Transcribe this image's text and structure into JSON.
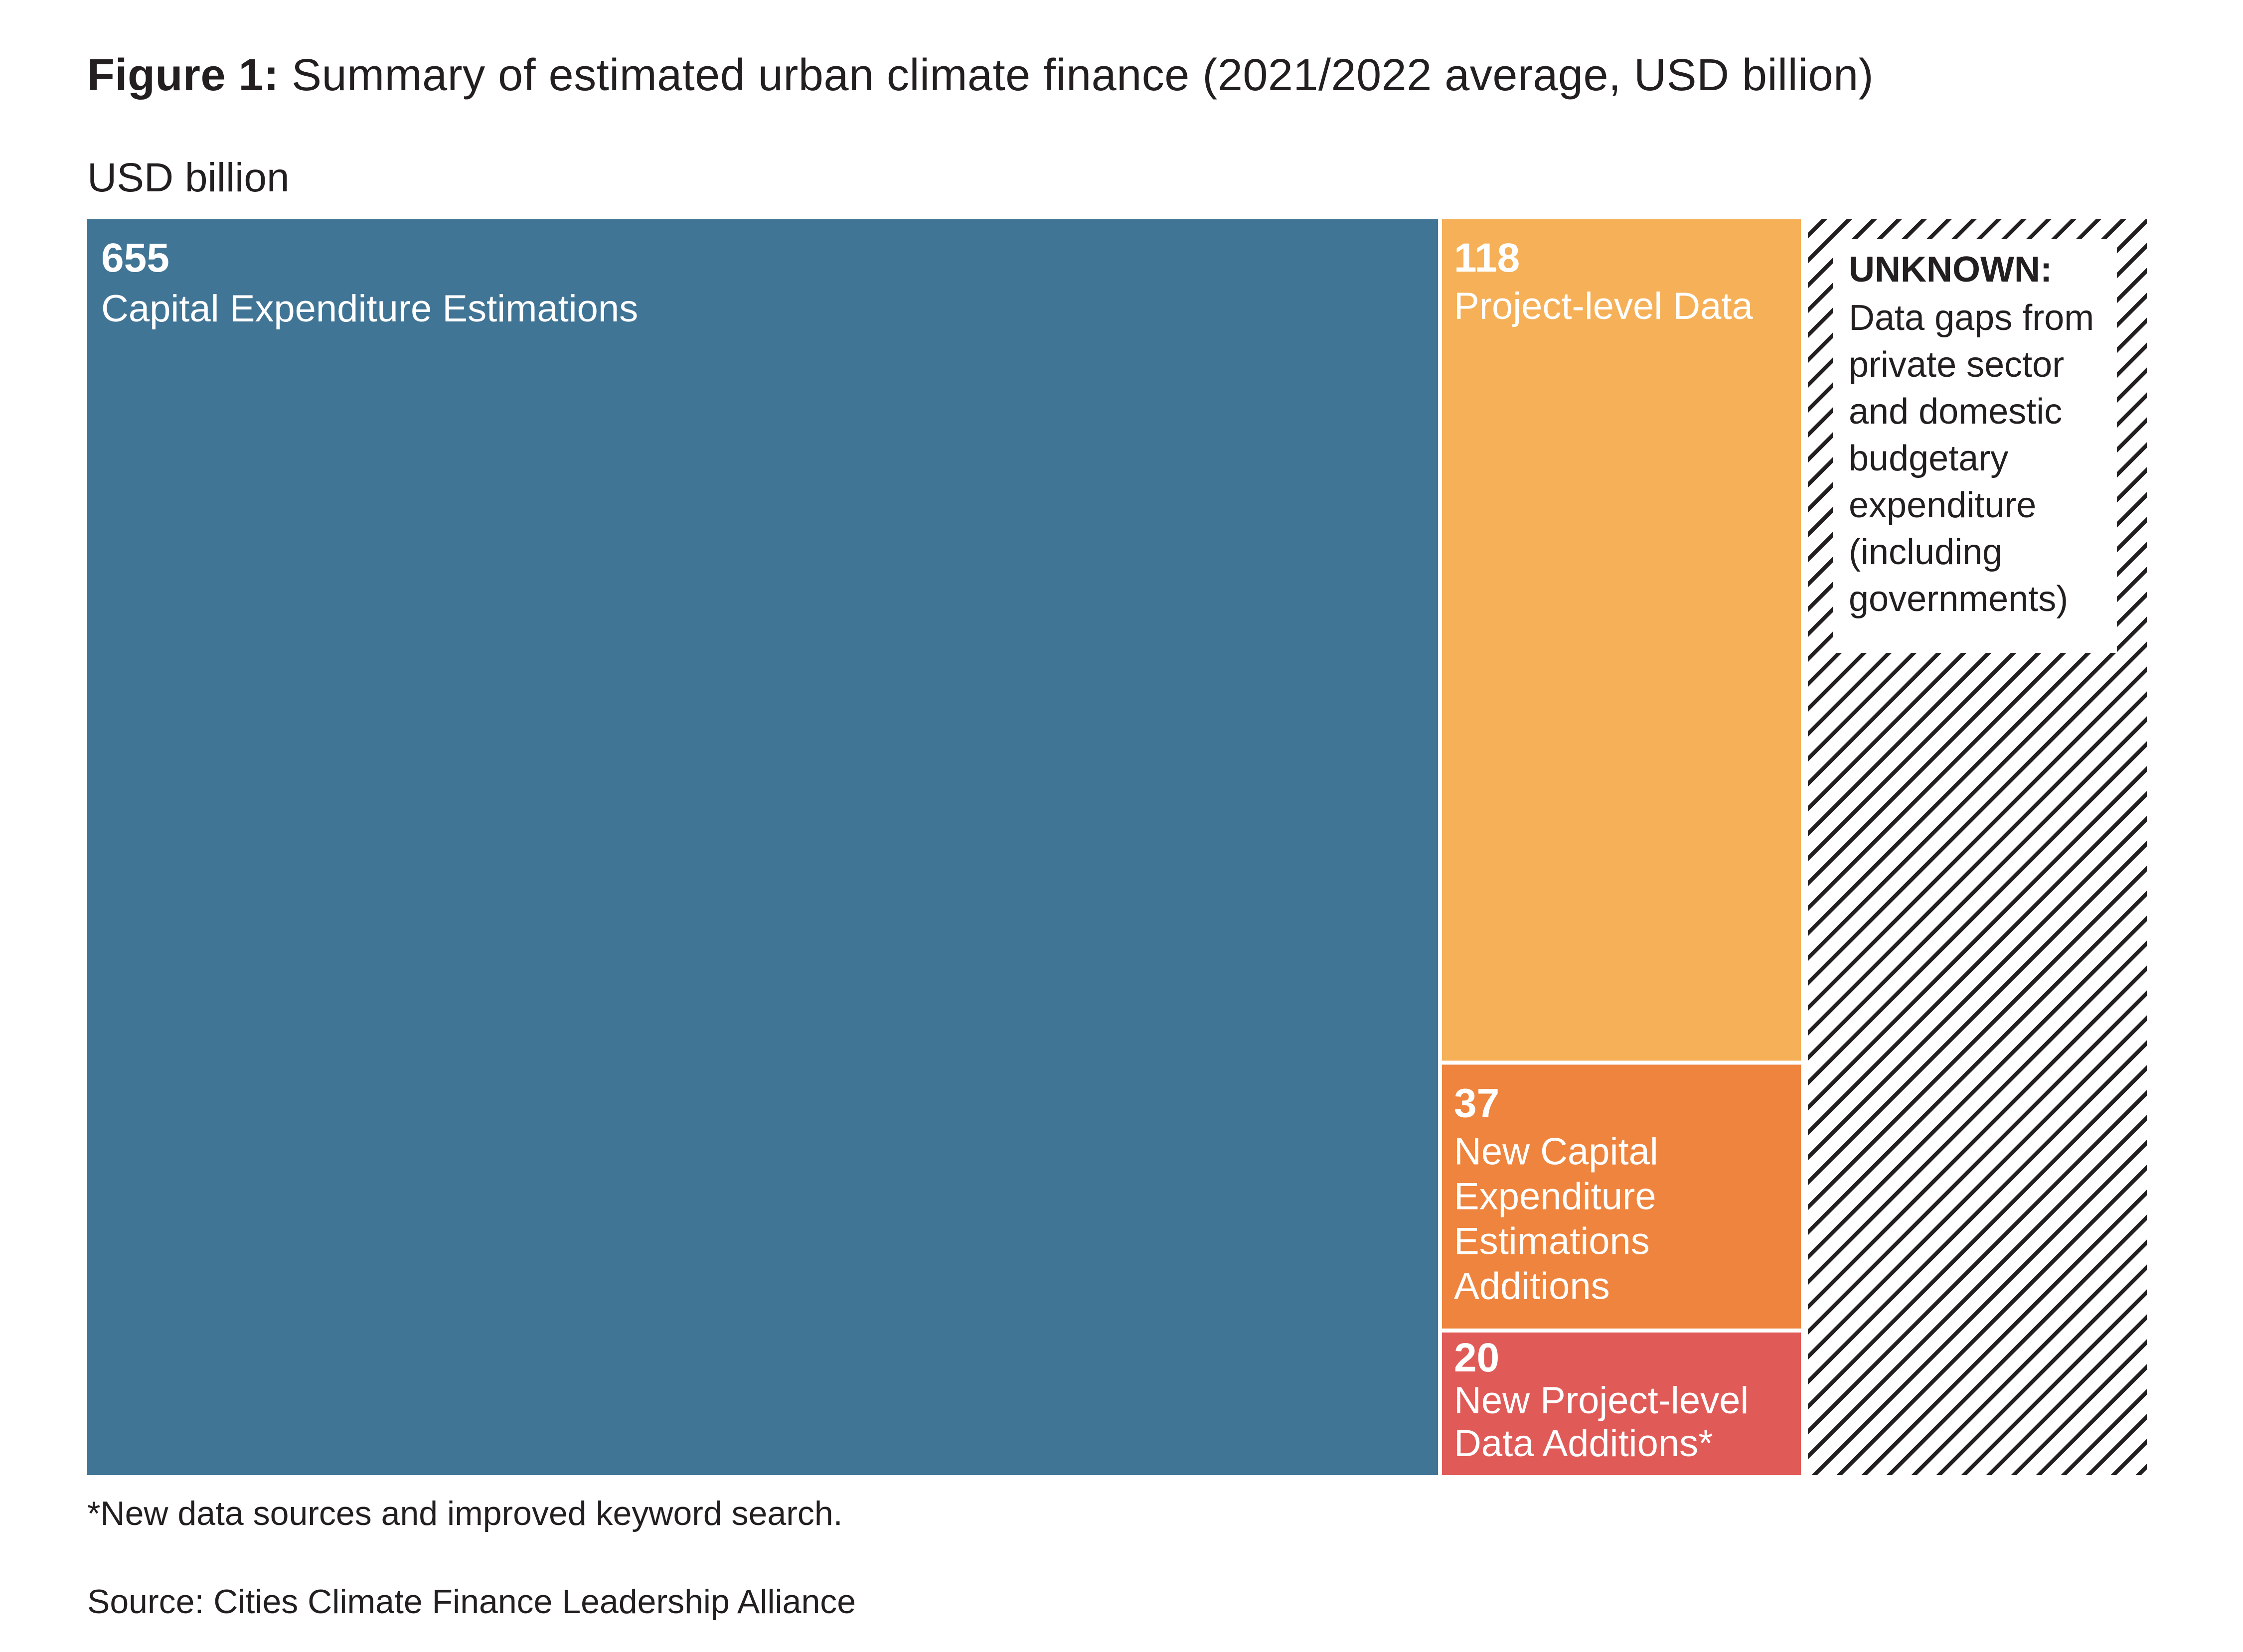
{
  "figure": {
    "title_lead": "Figure 1:",
    "title_rest": " Summary of estimated urban climate finance (2021/2022 average, USD billion)",
    "unit_label": "USD billion",
    "footnote": "*New data sources and improved keyword search.",
    "source": "Source: Cities Climate Finance Leadership Alliance"
  },
  "chart_data": {
    "type": "treemap",
    "unit": "USD billion",
    "items": [
      {
        "name": "Capital Expenditure Estimations",
        "value": 655,
        "value_label": "655",
        "label_lines": [
          "Capital Expenditure Estimations"
        ],
        "color": "#417596"
      },
      {
        "name": "Project-level Data",
        "value": 118,
        "value_label": "118",
        "label_lines": [
          "Project-level Data"
        ],
        "color": "#f5b058"
      },
      {
        "name": "New Capital Expenditure Estimations Additions",
        "value": 37,
        "value_label": "37",
        "label_lines": [
          "New Capital",
          "Expenditure",
          "Estimations",
          "Additions"
        ],
        "color": "#ee843e"
      },
      {
        "name": "New Project-level Data Additions*",
        "value": 20,
        "value_label": "20",
        "label_lines": [
          "New Project-level",
          "Data Additions*"
        ],
        "color": "#e05b58"
      }
    ],
    "unknown": {
      "heading": "UNKNOWN:",
      "lines": [
        "Data gaps from",
        "private sector",
        "and domestic",
        "budgetary",
        "expenditure",
        "(including",
        "governments)"
      ],
      "fill": "hatched"
    },
    "colors": {
      "text_on_fill": "#ffffff",
      "text_dark": "#231f20",
      "hatch": "#231f20"
    }
  }
}
